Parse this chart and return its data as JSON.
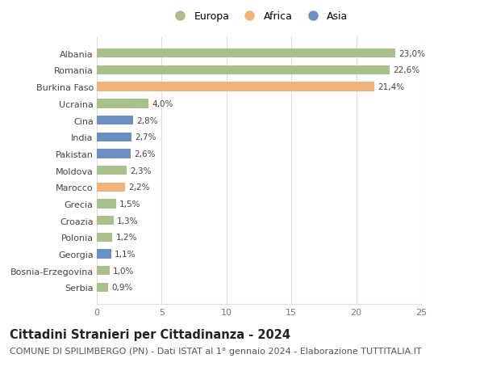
{
  "categories": [
    "Serbia",
    "Bosnia-Erzegovina",
    "Georgia",
    "Polonia",
    "Croazia",
    "Grecia",
    "Marocco",
    "Moldova",
    "Pakistan",
    "India",
    "Cina",
    "Ucraina",
    "Burkina Faso",
    "Romania",
    "Albania"
  ],
  "values": [
    0.9,
    1.0,
    1.1,
    1.2,
    1.3,
    1.5,
    2.2,
    2.3,
    2.6,
    2.7,
    2.8,
    4.0,
    21.4,
    22.6,
    23.0
  ],
  "labels": [
    "0,9%",
    "1,0%",
    "1,1%",
    "1,2%",
    "1,3%",
    "1,5%",
    "2,2%",
    "2,3%",
    "2,6%",
    "2,7%",
    "2,8%",
    "4,0%",
    "21,4%",
    "22,6%",
    "23,0%"
  ],
  "colors": [
    "#a8c08a",
    "#a8c08a",
    "#6b8fc2",
    "#a8c08a",
    "#a8c08a",
    "#a8c08a",
    "#f0b47a",
    "#a8c08a",
    "#6b8fc2",
    "#6b8fc2",
    "#6b8fc2",
    "#a8c08a",
    "#f0b47a",
    "#a8c08a",
    "#a8c08a"
  ],
  "legend_labels": [
    "Europa",
    "Africa",
    "Asia"
  ],
  "legend_colors": [
    "#a8c08a",
    "#f0b47a",
    "#6b8fc2"
  ],
  "title": "Cittadini Stranieri per Cittadinanza - 2024",
  "subtitle": "COMUNE DI SPILIMBERGO (PN) - Dati ISTAT al 1° gennaio 2024 - Elaborazione TUTTITALIA.IT",
  "xlim": [
    0,
    25
  ],
  "xticks": [
    0,
    5,
    10,
    15,
    20,
    25
  ],
  "background_color": "#ffffff",
  "grid_color": "#dddddd",
  "bar_height": 0.55,
  "label_fontsize": 7.5,
  "tick_fontsize": 8,
  "legend_fontsize": 9,
  "title_fontsize": 10.5,
  "subtitle_fontsize": 8
}
